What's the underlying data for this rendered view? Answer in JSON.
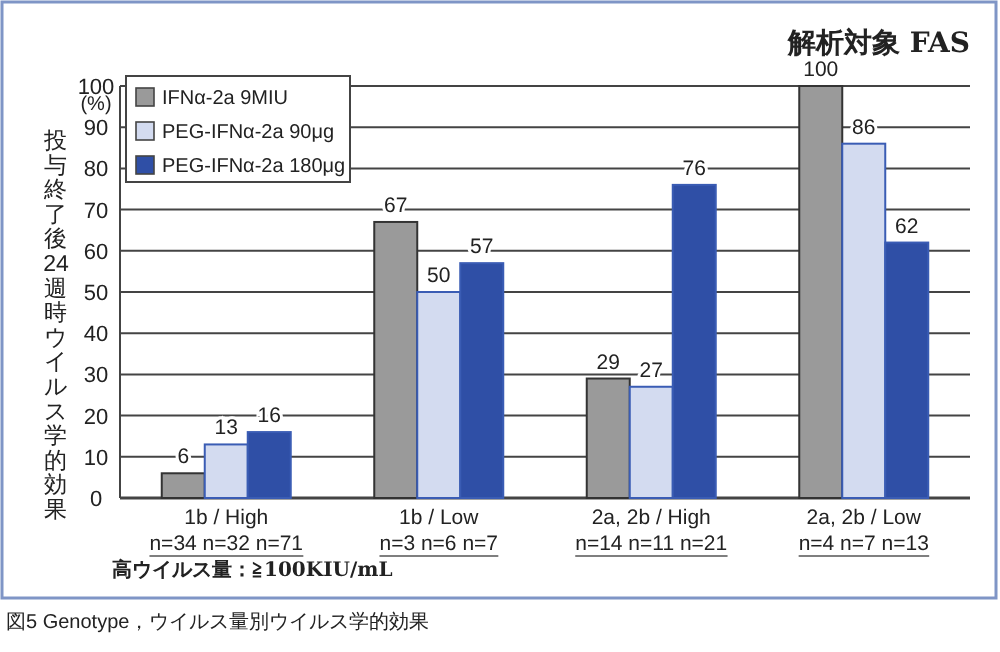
{
  "chart_data": {
    "type": "bar",
    "title": "解析対象 FAS",
    "ylabel": "投与終了後24週時ウイルス学的効果",
    "categories": [
      "1b / High\nn=34 n=32 n=71",
      "1b / Low\nn=3  n=6  n=7",
      "2a, 2b / High\nn=14 n=11 n=21",
      "2a, 2b /  Low\nn=4  n=7  n=13"
    ],
    "series": [
      {
        "name": "IFNα-2a  9MIU",
        "color": "#9a9a9a",
        "values": [
          6,
          67,
          29,
          100
        ]
      },
      {
        "name": "PEG-IFNα-2a  90μg",
        "color": "#d3dbf0",
        "values": [
          13,
          50,
          27,
          86
        ]
      },
      {
        "name": "PEG-IFNα-2a  180μg",
        "color": "#2f4fa6",
        "values": [
          16,
          57,
          76,
          62
        ]
      }
    ],
    "ylim": [
      0,
      100
    ],
    "yticks": [
      0,
      10,
      20,
      30,
      40,
      50,
      60,
      70,
      80,
      90,
      100
    ],
    "grid": "y",
    "legend": "top left",
    "data_labels": true,
    "annotations": [
      "(%)",
      "高ウイルス量：≧100KIU/mL",
      "図5  Genotype，ウイルス量別ウイルス学的効果"
    ]
  }
}
